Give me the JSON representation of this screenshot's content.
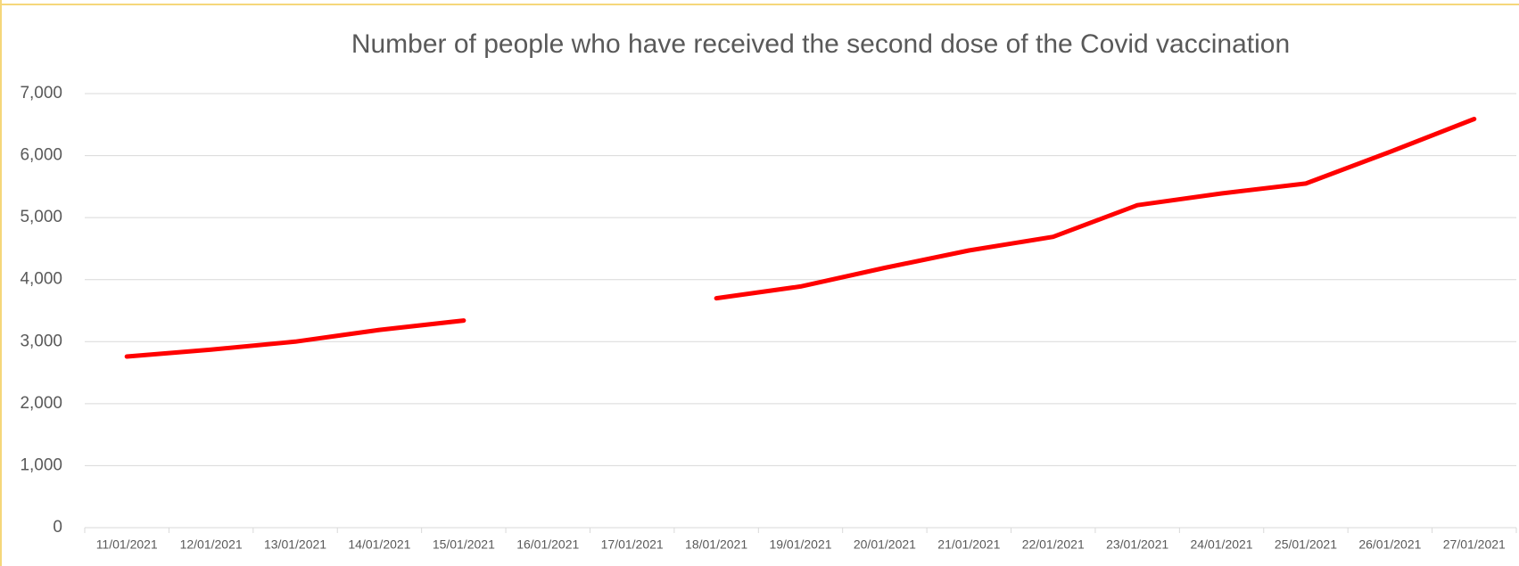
{
  "chart_data": {
    "type": "line",
    "title": "Number of people who have received the second dose of the Covid vaccination",
    "categories": [
      "11/01/2021",
      "12/01/2021",
      "13/01/2021",
      "14/01/2021",
      "15/01/2021",
      "16/01/2021",
      "17/01/2021",
      "18/01/2021",
      "19/01/2021",
      "20/01/2021",
      "21/01/2021",
      "22/01/2021",
      "23/01/2021",
      "24/01/2021",
      "25/01/2021",
      "26/01/2021",
      "27/01/2021"
    ],
    "series": [
      {
        "name": "Second dose",
        "color": "#ff0000",
        "values": [
          2760,
          2870,
          3000,
          3190,
          3340,
          null,
          null,
          3700,
          3890,
          4190,
          4470,
          4690,
          5200,
          5390,
          5550,
          6060,
          6590
        ]
      }
    ],
    "ylim": [
      0,
      7000
    ],
    "yticks": [
      0,
      {
        "value": 1000,
        "label": "1,000"
      },
      {
        "value": 2000,
        "label": "2,000"
      },
      {
        "value": 3000,
        "label": "3,000"
      },
      {
        "value": 4000,
        "label": "4,000"
      },
      {
        "value": 5000,
        "label": "5,000"
      },
      {
        "value": 6000,
        "label": "6,000"
      },
      {
        "value": 7000,
        "label": "7,000"
      }
    ],
    "grid": true
  }
}
